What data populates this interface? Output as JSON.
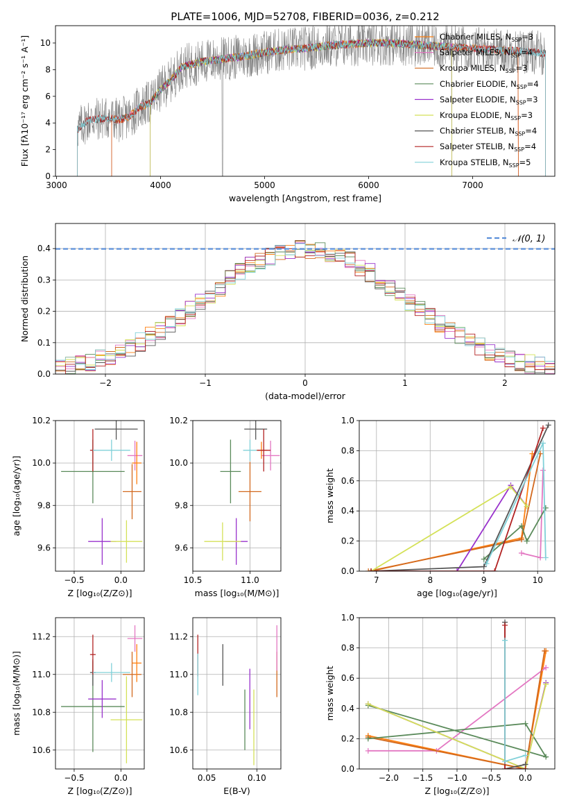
{
  "figure_title": "PLATE=1006, MJD=52708, FIBERID=0036, z=0.212",
  "legend_colors": {
    "chabrier_miles": "#ff7f0e",
    "salpeter_miles": "#e377c2",
    "kroupa_miles": "#d2691e",
    "chabrier_elodie": "#5a8a5a",
    "salpeter_elodie": "#9932cc",
    "kroupa_elodie": "#d4e157",
    "chabrier_stelib": "#555555",
    "salpeter_stelib": "#b22222",
    "kroupa_stelib": "#80d0d8",
    "normal": "#5b8fd9"
  },
  "chart_data": [
    {
      "id": "spectrum",
      "type": "line",
      "xlabel": "wavelength [Angstrom, rest frame]",
      "ylabel": "Flux [fλ10⁻¹⁷ erg cm⁻² s⁻¹ A⁻¹]",
      "xlim": [
        2990,
        7790
      ],
      "ylim": [
        0,
        11.3
      ],
      "xticks": [
        3000,
        4000,
        5000,
        6000,
        7000
      ],
      "yticks": [
        0,
        2,
        4,
        6,
        8,
        10
      ],
      "grid": false,
      "legend_position": "top-right",
      "continuum": {
        "x": [
          3200,
          3300,
          3400,
          3500,
          3600,
          3700,
          3800,
          3900,
          4000,
          4100,
          4200,
          4300,
          4400,
          4600,
          4800,
          5000,
          5200,
          5400,
          5600,
          5800,
          6000,
          6200,
          6400,
          6600,
          6800,
          7000,
          7200,
          7400,
          7600,
          7700
        ],
        "y": [
          3.5,
          4.2,
          4.3,
          4.4,
          4.2,
          4.5,
          5.2,
          5.5,
          6.5,
          7.2,
          8.2,
          8.4,
          8.6,
          8.8,
          9.0,
          9.3,
          9.5,
          9.6,
          9.8,
          9.9,
          10.0,
          10.0,
          9.9,
          9.8,
          9.7,
          9.6,
          9.5,
          9.4,
          9.3,
          9.2
        ]
      },
      "series": [
        {
          "name": "Chabrier MILES",
          "label": "Chabrier MILES, N",
          "sub": "SSP",
          "count": "=3",
          "color": "#ff7f0e",
          "x_start": 3530,
          "x_end": 7440
        },
        {
          "name": "Salpeter MILES",
          "label": "Salpeter MILES, N",
          "sub": "SSP",
          "count": "=4",
          "color": "#e377c2",
          "x_start": 3530,
          "x_end": 7440
        },
        {
          "name": "Kroupa MILES",
          "label": "Kroupa MILES, N",
          "sub": "SSP",
          "count": "=3",
          "color": "#d2691e",
          "x_start": 3530,
          "x_end": 7440
        },
        {
          "name": "Chabrier ELODIE",
          "label": "Chabrier ELODIE, N",
          "sub": "SSP",
          "count": "=4",
          "color": "#5a8a5a",
          "x_start": 3900,
          "x_end": 6800
        },
        {
          "name": "Salpeter ELODIE",
          "label": "Salpeter ELODIE, N",
          "sub": "SSP",
          "count": "=3",
          "color": "#9932cc",
          "x_start": 3900,
          "x_end": 6800
        },
        {
          "name": "Kroupa ELODIE",
          "label": "Kroupa ELODIE, N",
          "sub": "SSP",
          "count": "=3",
          "color": "#d4e157",
          "x_start": 3900,
          "x_end": 6800
        },
        {
          "name": "Chabrier STELIB",
          "label": "Chabrier STELIB, N",
          "sub": "SSP",
          "count": "=4",
          "color": "#555555",
          "x_start": 3200,
          "x_end": 7700
        },
        {
          "name": "Salpeter STELIB",
          "label": "Salpeter STELIB, N",
          "sub": "SSP",
          "count": "=4",
          "color": "#b22222",
          "x_start": 3200,
          "x_end": 7700
        },
        {
          "name": "Kroupa STELIB",
          "label": "Kroupa STELIB, N",
          "sub": "SSP",
          "count": "=5",
          "color": "#80d0d8",
          "x_start": 3200,
          "x_end": 7700
        }
      ]
    },
    {
      "id": "residuals",
      "type": "line",
      "xlabel": "(data-model)/error",
      "ylabel": "Normed distribution",
      "xlim": [
        -2.5,
        2.5
      ],
      "ylim": [
        0,
        0.48
      ],
      "xticks": [
        -2,
        -1,
        0,
        1,
        2
      ],
      "yticks": [
        0.0,
        0.1,
        0.2,
        0.3,
        0.4
      ],
      "grid": true,
      "legend_position": "top-right",
      "gaussian": {
        "name": "𝒩(0, 1)",
        "mean": 0,
        "sigma": 1
      },
      "histograms": {
        "bin_edges_from": -2.5,
        "bin_width": 0.1,
        "bins": 50,
        "series_count": 9
      }
    },
    {
      "id": "age_vs_Z",
      "type": "scatter",
      "xlabel": "Z [log₁₀(Z/Z⊙)]",
      "ylabel": "age  [log₁₀(age/yr)]",
      "xlim": [
        -0.7,
        0.25
      ],
      "ylim": [
        9.49,
        10.2
      ],
      "xticks": [
        -0.5,
        0.0
      ],
      "yticks": [
        9.6,
        9.8,
        10.0,
        10.2
      ],
      "grid": true,
      "points": [
        {
          "x": 0.12,
          "y": 9.865,
          "xerr": 0.1,
          "yerr": 0.13,
          "color": "#d2691e"
        },
        {
          "x": 0.15,
          "y": 10.035,
          "xerr": 0.08,
          "yerr": 0.07,
          "color": "#e377c2"
        },
        {
          "x": 0.17,
          "y": 10.0,
          "xerr": 0.05,
          "yerr": 0.1,
          "color": "#ff7f0e"
        },
        {
          "x": -0.3,
          "y": 9.96,
          "xerr": 0.34,
          "yerr": 0.15,
          "color": "#5a8a5a"
        },
        {
          "x": -0.2,
          "y": 9.63,
          "xerr": 0.15,
          "yerr": 0.11,
          "color": "#9932cc"
        },
        {
          "x": 0.06,
          "y": 9.63,
          "xerr": 0.17,
          "yerr": 0.1,
          "color": "#d4e157"
        },
        {
          "x": -0.05,
          "y": 10.16,
          "xerr": 0.23,
          "yerr": 0.05,
          "color": "#555555"
        },
        {
          "x": -0.3,
          "y": 10.06,
          "xerr": 0.03,
          "yerr": 0.1,
          "color": "#b22222"
        },
        {
          "x": -0.1,
          "y": 10.06,
          "xerr": 0.2,
          "yerr": 0.05,
          "color": "#80d0d8"
        }
      ]
    },
    {
      "id": "age_vs_mass",
      "type": "scatter",
      "xlabel": "mass [log₁₀(M/M⊙)]",
      "ylabel": "",
      "xlim": [
        10.5,
        11.27
      ],
      "ylim": [
        9.49,
        10.2
      ],
      "xticks": [
        10.5,
        11.0
      ],
      "yticks": [
        9.6,
        9.8,
        10.0,
        10.2
      ],
      "grid": true,
      "points": [
        {
          "x": 11.0,
          "y": 9.865,
          "xerr": 0.1,
          "yerr": 0.14,
          "color": "#d2691e"
        },
        {
          "x": 11.18,
          "y": 10.035,
          "xerr": 0.08,
          "yerr": 0.07,
          "color": "#e377c2"
        },
        {
          "x": 11.1,
          "y": 10.06,
          "xerr": 0.05,
          "yerr": 0.04,
          "color": "#ff7f0e"
        },
        {
          "x": 10.83,
          "y": 9.96,
          "xerr": 0.09,
          "yerr": 0.15,
          "color": "#5a8a5a"
        },
        {
          "x": 10.88,
          "y": 9.63,
          "xerr": 0.1,
          "yerr": 0.11,
          "color": "#9932cc"
        },
        {
          "x": 10.76,
          "y": 9.63,
          "xerr": 0.16,
          "yerr": 0.09,
          "color": "#d4e157"
        },
        {
          "x": 11.05,
          "y": 10.16,
          "xerr": 0.1,
          "yerr": 0.05,
          "color": "#555555"
        },
        {
          "x": 11.12,
          "y": 10.06,
          "xerr": 0.06,
          "yerr": 0.1,
          "color": "#b22222"
        },
        {
          "x": 11.0,
          "y": 10.06,
          "xerr": 0.06,
          "yerr": 0.05,
          "color": "#80d0d8"
        }
      ]
    },
    {
      "id": "mass_weight_vs_age",
      "type": "line",
      "xlabel": "age  [log₁₀(age/yr)]",
      "ylabel": "mass weight",
      "xlim": [
        6.68,
        10.32
      ],
      "ylim": [
        0,
        1
      ],
      "xticks": [
        7,
        8,
        9,
        10
      ],
      "yticks": [
        0.0,
        0.2,
        0.4,
        0.6,
        0.8,
        1.0
      ],
      "grid": true,
      "series": [
        {
          "name": "Chabrier MILES",
          "color": "#ff7f0e",
          "x": [
            6.9,
            9.7,
            9.9
          ],
          "y": [
            0.0,
            0.22,
            0.78
          ]
        },
        {
          "name": "Salpeter MILES",
          "color": "#e377c2",
          "x": [
            9.7,
            10.05,
            10.1
          ],
          "y": [
            0.12,
            0.09,
            0.67
          ]
        },
        {
          "name": "Kroupa MILES",
          "color": "#d2691e",
          "x": [
            6.85,
            9.7,
            10.05
          ],
          "y": [
            0.0,
            0.21,
            0.78
          ]
        },
        {
          "name": "Chabrier ELODIE",
          "color": "#5a8a5a",
          "x": [
            9.0,
            9.7,
            9.8,
            10.15
          ],
          "y": [
            0.08,
            0.3,
            0.2,
            0.42
          ]
        },
        {
          "name": "Salpeter ELODIE",
          "color": "#9932cc",
          "x": [
            8.5,
            9.5,
            9.8
          ],
          "y": [
            0.0,
            0.57,
            0.43
          ]
        },
        {
          "name": "Kroupa ELODIE",
          "color": "#d4e157",
          "x": [
            6.9,
            9.5,
            9.8
          ],
          "y": [
            0.0,
            0.56,
            0.43
          ]
        },
        {
          "name": "Chabrier STELIB",
          "color": "#555555",
          "x": [
            6.9,
            9.0,
            10.2
          ],
          "y": [
            0.0,
            0.03,
            0.97
          ]
        },
        {
          "name": "Salpeter STELIB",
          "color": "#b22222",
          "x": [
            6.9,
            9.2,
            10.1
          ],
          "y": [
            0.0,
            0.0,
            0.95
          ]
        },
        {
          "name": "Kroupa STELIB",
          "color": "#80d0d8",
          "x": [
            9.05,
            10.1,
            10.15
          ],
          "y": [
            0.05,
            0.85,
            0.09
          ]
        }
      ]
    },
    {
      "id": "mass_vs_Z",
      "type": "scatter",
      "xlabel": "Z [log₁₀(Z/Z⊙)]",
      "ylabel": "mass [log₁₀(M/M⊙)]",
      "xlim": [
        -0.7,
        0.25
      ],
      "ylim": [
        10.5,
        11.3
      ],
      "xticks": [
        -0.5,
        0.0
      ],
      "yticks": [
        10.6,
        10.8,
        11.0,
        11.2
      ],
      "grid": true,
      "points": [
        {
          "x": 0.12,
          "y": 11.0,
          "xerr": 0.1,
          "yerr": 0.12,
          "color": "#d2691e"
        },
        {
          "x": 0.15,
          "y": 11.19,
          "xerr": 0.08,
          "yerr": 0.07,
          "color": "#e377c2"
        },
        {
          "x": 0.17,
          "y": 11.06,
          "xerr": 0.05,
          "yerr": 0.1,
          "color": "#ff7f0e"
        },
        {
          "x": -0.3,
          "y": 10.83,
          "xerr": 0.34,
          "yerr": 0.24,
          "color": "#5a8a5a"
        },
        {
          "x": -0.2,
          "y": 10.87,
          "xerr": 0.15,
          "yerr": 0.1,
          "color": "#9932cc"
        },
        {
          "x": 0.06,
          "y": 10.76,
          "xerr": 0.17,
          "yerr": 0.23,
          "color": "#d4e157"
        },
        {
          "x": -0.3,
          "y": 11.01,
          "xerr": 0.03,
          "yerr": 0.07,
          "color": "#555555"
        },
        {
          "x": -0.3,
          "y": 11.105,
          "xerr": 0.03,
          "yerr": 0.105,
          "color": "#b22222"
        },
        {
          "x": -0.1,
          "y": 11.01,
          "xerr": 0.2,
          "yerr": 0.05,
          "color": "#80d0d8"
        }
      ]
    },
    {
      "id": "mass_vs_EBV",
      "type": "scatter",
      "xlabel": "E(B-V)",
      "ylabel": "",
      "xlim": [
        0.036,
        0.124
      ],
      "ylim": [
        10.5,
        11.3
      ],
      "xticks": [
        0.05,
        0.1
      ],
      "yticks": [
        10.6,
        10.8,
        11.0,
        11.2
      ],
      "grid": true,
      "points": [
        {
          "x": 0.12,
          "y": 11.0,
          "yerr": 0.12,
          "color": "#d2691e"
        },
        {
          "x": 0.12,
          "y": 11.14,
          "yerr": 0.12,
          "color": "#e377c2"
        },
        {
          "x": 0.041,
          "y": 11.1,
          "yerr": 0.11,
          "color": "#b22222"
        },
        {
          "x": 0.041,
          "y": 11.0,
          "yerr": 0.11,
          "color": "#80d0d8"
        },
        {
          "x": 0.066,
          "y": 11.05,
          "yerr": 0.11,
          "color": "#555555"
        },
        {
          "x": 0.088,
          "y": 10.76,
          "yerr": 0.16,
          "color": "#5a8a5a"
        },
        {
          "x": 0.093,
          "y": 10.87,
          "yerr": 0.16,
          "color": "#9932cc"
        },
        {
          "x": 0.097,
          "y": 10.72,
          "yerr": 0.2,
          "color": "#d4e157"
        }
      ]
    },
    {
      "id": "mass_weight_vs_Z",
      "type": "line",
      "xlabel": "Z [log₁₀(Z/Z⊙)]",
      "ylabel": "mass weight",
      "xlim": [
        -2.43,
        0.43
      ],
      "ylim": [
        0,
        1
      ],
      "xticks": [
        -2.0,
        -1.5,
        -1.0,
        -0.5,
        0.0
      ],
      "yticks": [
        0.0,
        0.2,
        0.4,
        0.6,
        0.8,
        1.0
      ],
      "grid": true,
      "series": [
        {
          "name": "Chabrier MILES",
          "color": "#ff7f0e",
          "x": [
            -2.3,
            0.0,
            0.3
          ],
          "y": [
            0.22,
            0.0,
            0.78
          ]
        },
        {
          "name": "Salpeter MILES",
          "color": "#e377c2",
          "x": [
            -2.3,
            -1.3,
            0.3
          ],
          "y": [
            0.12,
            0.12,
            0.67
          ]
        },
        {
          "name": "Kroupa MILES",
          "color": "#d2691e",
          "x": [
            -2.3,
            0.0,
            0.28
          ],
          "y": [
            0.21,
            0.0,
            0.78
          ]
        },
        {
          "name": "Chabrier ELODIE",
          "color": "#5a8a5a",
          "x": [
            -2.3,
            0.0,
            0.3,
            -2.3
          ],
          "y": [
            0.2,
            0.3,
            0.08,
            0.42
          ]
        },
        {
          "name": "Salpeter ELODIE",
          "color": "#9932cc",
          "x": [
            -2.3,
            0.0,
            0.3
          ],
          "y": [
            0.43,
            0.0,
            0.57
          ]
        },
        {
          "name": "Kroupa ELODIE",
          "color": "#d4e157",
          "x": [
            -2.3,
            0.0,
            0.3
          ],
          "y": [
            0.43,
            0.0,
            0.56
          ]
        },
        {
          "name": "Chabrier STELIB",
          "color": "#555555",
          "x": [
            -0.3,
            -0.3,
            0.0
          ],
          "y": [
            0.97,
            0.0,
            0.03
          ]
        },
        {
          "name": "Salpeter STELIB",
          "color": "#b22222",
          "x": [
            -0.3,
            -0.3,
            0.0
          ],
          "y": [
            0.95,
            0.0,
            0.0
          ]
        },
        {
          "name": "Kroupa STELIB",
          "color": "#80d0d8",
          "x": [
            -0.3,
            -0.3,
            0.0
          ],
          "y": [
            0.85,
            0.05,
            0.09
          ]
        }
      ]
    }
  ]
}
